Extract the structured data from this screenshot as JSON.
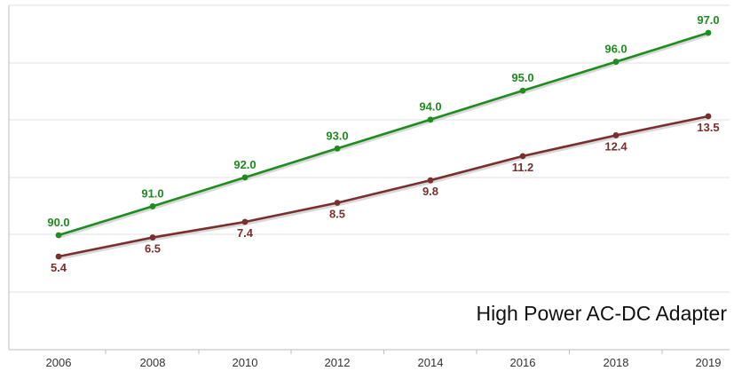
{
  "chart_data": {
    "type": "line",
    "title": "High Power AC-DC Adapter",
    "x": [
      "2006",
      "2008",
      "2010",
      "2012",
      "2014",
      "2016",
      "2018",
      "2019"
    ],
    "series": [
      {
        "name": "",
        "color": "#1e8c1e",
        "values": [
          90.0,
          91.0,
          92.0,
          93.0,
          94.0,
          95.0,
          96.0,
          97.0
        ],
        "labels": [
          "90.0",
          "91.0",
          "92.0",
          "93.0",
          "94.0",
          "95.0",
          "96.0",
          "97.0"
        ],
        "label_position": "above"
      },
      {
        "name": "",
        "color": "#7a2f2f",
        "values": [
          5.4,
          6.5,
          7.4,
          8.5,
          9.8,
          11.2,
          12.4,
          13.5
        ],
        "labels": [
          "5.4",
          "6.5",
          "7.4",
          "8.5",
          "9.8",
          "11.2",
          "12.4",
          "13.5"
        ],
        "label_position": "below"
      }
    ],
    "grid": true,
    "y_axis_labels_shown": false,
    "legend": "none"
  }
}
